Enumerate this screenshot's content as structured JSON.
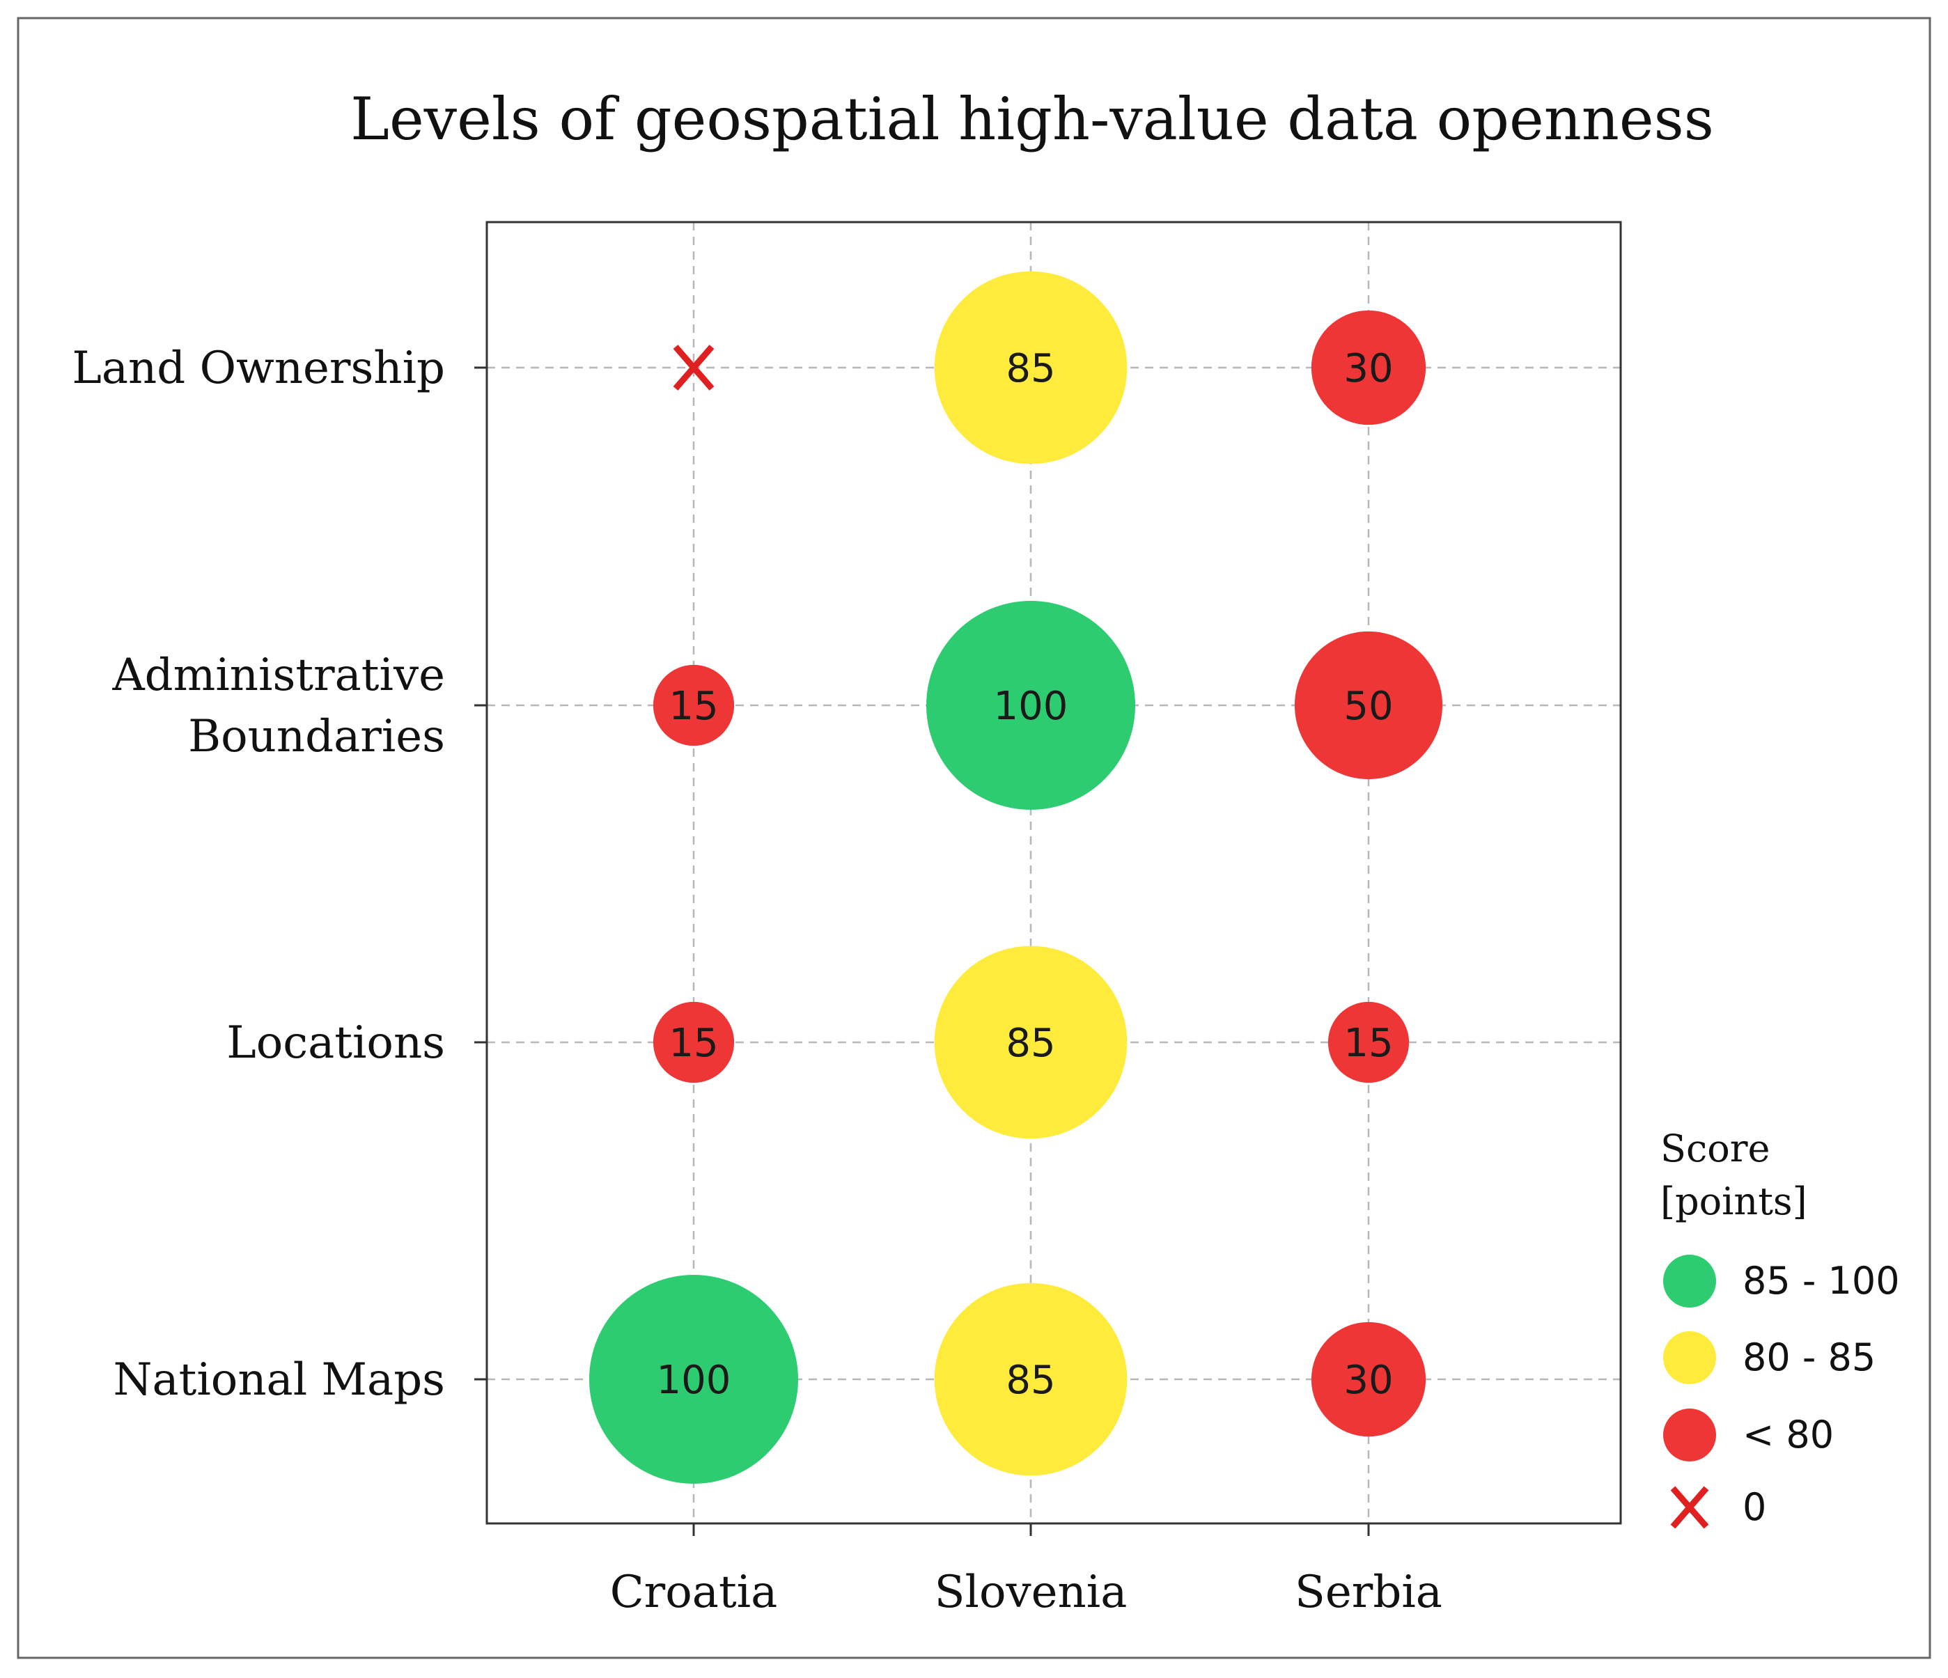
{
  "chart_data": {
    "type": "scatter",
    "title": "Levels of geospatial high-value data openness",
    "xlabel": "",
    "ylabel": "",
    "categories": [
      "Croatia",
      "Slovenia",
      "Serbia"
    ],
    "rows": [
      "Land Ownership",
      "Administrative Boundaries",
      "Locations",
      "National Maps"
    ],
    "row_label_lines": [
      [
        "Land Ownership"
      ],
      [
        "Administrative",
        "Boundaries"
      ],
      [
        "Locations"
      ],
      [
        "National Maps"
      ]
    ],
    "points": [
      {
        "row": "Land Ownership",
        "country": "Croatia",
        "value": 0,
        "label": "X"
      },
      {
        "row": "Land Ownership",
        "country": "Slovenia",
        "value": 85,
        "label": "85"
      },
      {
        "row": "Land Ownership",
        "country": "Serbia",
        "value": 30,
        "label": "30"
      },
      {
        "row": "Administrative Boundaries",
        "country": "Croatia",
        "value": 15,
        "label": "15"
      },
      {
        "row": "Administrative Boundaries",
        "country": "Slovenia",
        "value": 100,
        "label": "100"
      },
      {
        "row": "Administrative Boundaries",
        "country": "Serbia",
        "value": 50,
        "label": "50"
      },
      {
        "row": "Locations",
        "country": "Croatia",
        "value": 15,
        "label": "15"
      },
      {
        "row": "Locations",
        "country": "Slovenia",
        "value": 85,
        "label": "85"
      },
      {
        "row": "Locations",
        "country": "Serbia",
        "value": 15,
        "label": "15"
      },
      {
        "row": "National Maps",
        "country": "Croatia",
        "value": 100,
        "label": "100"
      },
      {
        "row": "National Maps",
        "country": "Slovenia",
        "value": 85,
        "label": "85"
      },
      {
        "row": "National Maps",
        "country": "Serbia",
        "value": 30,
        "label": "30"
      }
    ],
    "grid": true,
    "legend": {
      "position": "right",
      "title_lines": [
        "Score",
        "[points]"
      ],
      "items": [
        {
          "label": "85 - 100",
          "color": "#2ecc71",
          "marker": "circle"
        },
        {
          "label": "80 - 85",
          "color": "#ffeb3b",
          "marker": "circle"
        },
        {
          "label": "< 80",
          "color": "#ee3636",
          "marker": "circle"
        },
        {
          "label": "0",
          "color": "#e02020",
          "marker": "x"
        }
      ]
    },
    "colors": {
      "high": "#2ecc71",
      "mid": "#ffeb3b",
      "low": "#ee3636",
      "zero": "#e02020",
      "grid": "#b8b8b8",
      "axis": "#333333",
      "text": "#111111"
    }
  }
}
